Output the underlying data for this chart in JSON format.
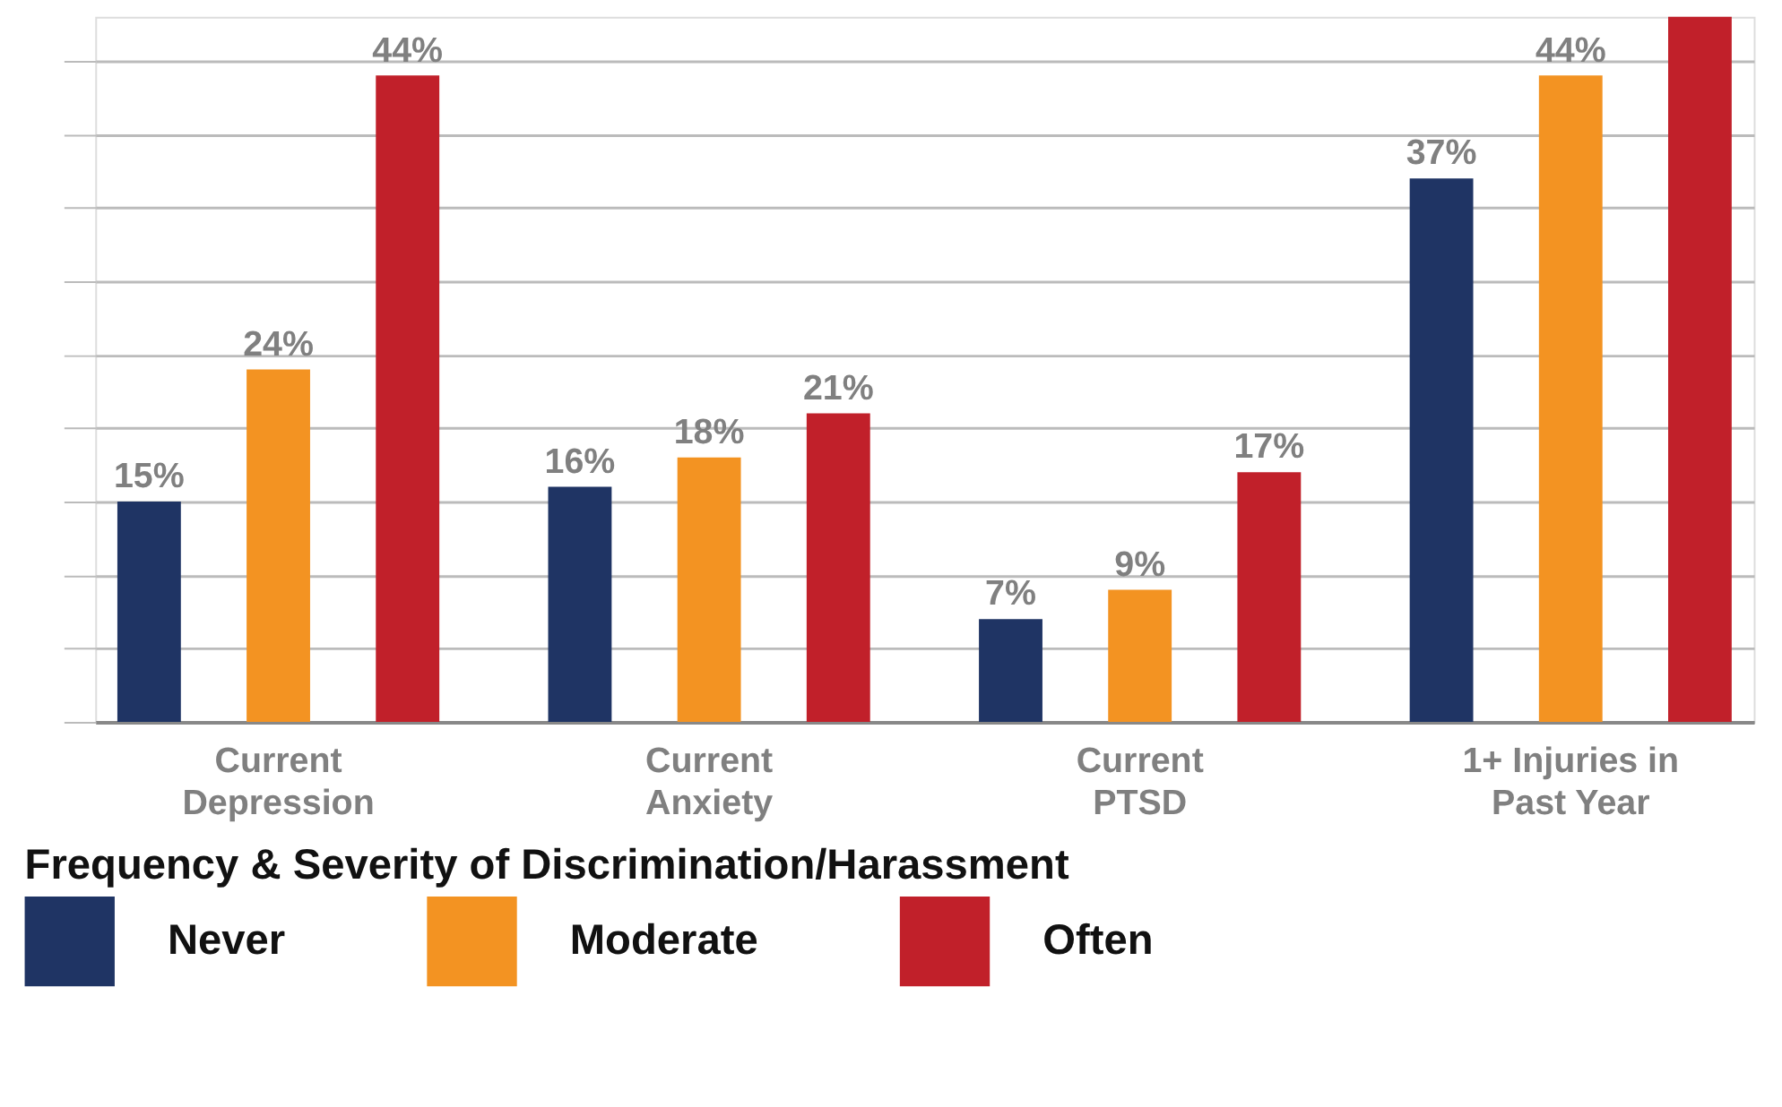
{
  "chart_data": {
    "type": "bar",
    "categories": [
      "Current Depression",
      "Current Anxiety",
      "Current PTSD",
      "1+ Injuries in Past Year"
    ],
    "series": [
      {
        "name": "Never",
        "color": "#1f3464",
        "values": [
          15,
          16,
          7,
          37
        ],
        "value_labels": [
          "15%",
          "16%",
          "7%",
          "37%"
        ]
      },
      {
        "name": "Moderate",
        "color": "#f39322",
        "values": [
          24,
          18,
          9,
          44
        ],
        "value_labels": [
          "24%",
          "18%",
          "9%",
          "44%"
        ]
      },
      {
        "name": "Often",
        "color": "#c1202a",
        "values": [
          44,
          21,
          17,
          48
        ],
        "value_labels": [
          "44%",
          "21%",
          "17%",
          null
        ]
      }
    ],
    "legend_title": "Frequency & Severity of Discrimination/Harassment",
    "legend": "bottom left",
    "ylim": [
      0,
      48
    ],
    "yticks": [
      {
        "value": 0,
        "label": null
      },
      {
        "value": 5,
        "label": null
      },
      {
        "value": 10,
        "label": null
      },
      {
        "value": 15,
        "label": null
      },
      {
        "value": 20,
        "label": null
      },
      {
        "value": 25,
        "label": null
      },
      {
        "value": 30,
        "label": null
      },
      {
        "value": 35,
        "label": null
      },
      {
        "value": 40,
        "label": null
      },
      {
        "value": 45,
        "label": null
      }
    ],
    "grid": "y",
    "tick_labels": "x"
  }
}
